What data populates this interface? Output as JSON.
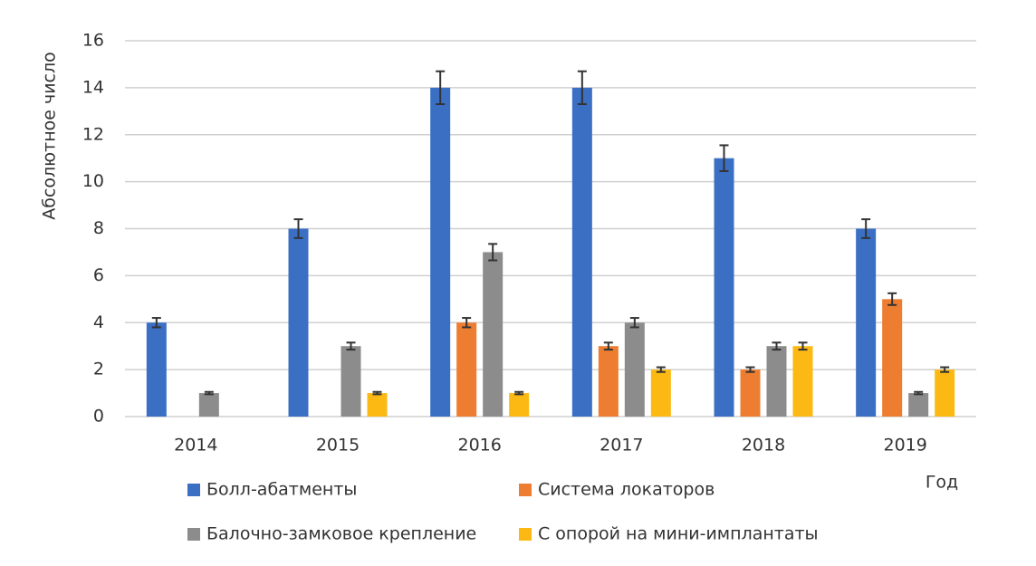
{
  "chart_data": {
    "type": "bar",
    "y_label": "Абсолютное число",
    "x_label": "Год",
    "categories": [
      "2014",
      "2015",
      "2016",
      "2017",
      "2018",
      "2019"
    ],
    "series": [
      {
        "name": "Болл-абатменты",
        "color": "#3a6fc4",
        "values": [
          4,
          8,
          14,
          14,
          11,
          8
        ],
        "errors": [
          0.2,
          0.4,
          0.7,
          0.7,
          0.55,
          0.4
        ]
      },
      {
        "name": "Система локаторов",
        "color": "#ed7d31",
        "values": [
          null,
          null,
          4,
          3,
          2,
          5
        ],
        "errors": [
          null,
          null,
          0.2,
          0.15,
          0.1,
          0.25
        ]
      },
      {
        "name": "Балочно-замковое крепление",
        "color": "#8c8c8c",
        "values": [
          1,
          3,
          7,
          4,
          3,
          1
        ],
        "errors": [
          0.05,
          0.15,
          0.35,
          0.2,
          0.15,
          0.05
        ]
      },
      {
        "name": "С опорой на мини-имплантаты",
        "color": "#fdb913",
        "values": [
          null,
          1,
          1,
          2,
          3,
          2
        ],
        "errors": [
          null,
          0.05,
          0.05,
          0.1,
          0.15,
          0.1
        ]
      }
    ],
    "ylim": [
      0,
      16
    ],
    "yticks": [
      0,
      2,
      4,
      6,
      8,
      10,
      12,
      14,
      16
    ],
    "grid": true
  }
}
